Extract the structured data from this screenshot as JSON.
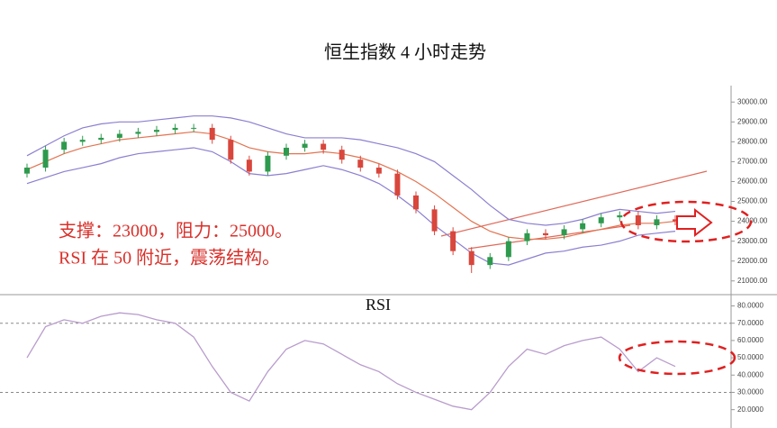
{
  "chart_data": [
    {
      "type": "candlestick",
      "title": "恒生指数 4 小时走势",
      "annotations": [
        "支撑：23000，阻力：25000。",
        "RSI 在 50 附近，震荡结构。"
      ],
      "open": [
        26400,
        26700,
        27600,
        28000,
        28100,
        28200,
        28400,
        28500,
        28600,
        28700,
        28700,
        28100,
        27100,
        26500,
        27300,
        27700,
        27900,
        27600,
        27100,
        26700,
        26400,
        25300,
        24600,
        23500,
        22500,
        21800,
        22200,
        23000,
        23400,
        23300,
        23600,
        23900,
        24200,
        24300,
        23800,
        24100
      ],
      "high": [
        26900,
        27800,
        28200,
        28300,
        28400,
        28600,
        28700,
        28800,
        28900,
        28900,
        28900,
        28300,
        27300,
        27500,
        27900,
        28100,
        28100,
        27800,
        27300,
        26900,
        26600,
        25500,
        24800,
        23700,
        22700,
        22400,
        23200,
        23600,
        23600,
        23800,
        24100,
        24400,
        24500,
        24500,
        24300,
        24300
      ],
      "low": [
        26200,
        26500,
        27400,
        27800,
        27900,
        28000,
        28200,
        28300,
        28400,
        28500,
        27900,
        26900,
        26300,
        26300,
        27100,
        27500,
        27400,
        26900,
        26500,
        26200,
        25100,
        24400,
        23300,
        22300,
        21400,
        21600,
        22000,
        22800,
        23100,
        23100,
        23400,
        23700,
        24000,
        23600,
        23600,
        23800
      ],
      "close": [
        26700,
        27600,
        28000,
        28100,
        28200,
        28400,
        28500,
        28600,
        28700,
        28700,
        28100,
        27100,
        26500,
        27300,
        27700,
        27900,
        27600,
        27100,
        26700,
        26400,
        25300,
        24600,
        23500,
        22500,
        21800,
        22200,
        23000,
        23400,
        23300,
        23600,
        23900,
        24200,
        24300,
        23800,
        24100,
        24000
      ],
      "up_color": "#2e9a4e",
      "down_color": "#d8463c",
      "bands": {
        "upper": [
          27300,
          27800,
          28300,
          28700,
          28900,
          29000,
          29000,
          29100,
          29200,
          29300,
          29300,
          29200,
          29000,
          28700,
          28400,
          28200,
          28200,
          28200,
          28100,
          27900,
          27700,
          27400,
          27000,
          26300,
          25600,
          24800,
          24100,
          23900,
          23800,
          23900,
          24100,
          24400,
          24600,
          24500,
          24400,
          24500
        ],
        "middle": [
          26600,
          27000,
          27400,
          27700,
          27900,
          28100,
          28200,
          28300,
          28400,
          28500,
          28400,
          28100,
          27700,
          27500,
          27400,
          27400,
          27500,
          27400,
          27200,
          26900,
          26500,
          26000,
          25400,
          24700,
          24000,
          23500,
          23200,
          23100,
          23100,
          23200,
          23400,
          23600,
          23800,
          23900,
          23900,
          24000
        ],
        "lower": [
          25900,
          26200,
          26500,
          26700,
          26900,
          27200,
          27400,
          27500,
          27600,
          27700,
          27500,
          27000,
          26400,
          26300,
          26400,
          26600,
          26800,
          26600,
          26300,
          25900,
          25300,
          24600,
          23800,
          23100,
          22400,
          21900,
          21800,
          22100,
          22400,
          22500,
          22700,
          22800,
          23000,
          23300,
          23400,
          23500
        ],
        "band_color": "#8c7fd0",
        "middle_color": "#e27452"
      },
      "ylim": [
        20400,
        30600
      ],
      "yticks": [
        {
          "value": 21000,
          "label": "21000.00"
        },
        {
          "value": 22000,
          "label": "22000.00"
        },
        {
          "value": 23000,
          "label": "23000.00"
        },
        {
          "value": 24000,
          "label": "24000.00"
        },
        {
          "value": 25000,
          "label": "25000.00"
        },
        {
          "value": 26000,
          "label": "26000.00"
        },
        {
          "value": 27000,
          "label": "27000.00"
        },
        {
          "value": 28000,
          "label": "28000.00"
        },
        {
          "value": 29000,
          "label": "29000.00"
        },
        {
          "value": 30000,
          "label": "30000.00"
        }
      ]
    },
    {
      "type": "line",
      "title": "RSI",
      "values": [
        50,
        68,
        72,
        70,
        74,
        76,
        75,
        72,
        70,
        62,
        45,
        30,
        25,
        42,
        55,
        60,
        58,
        52,
        46,
        42,
        35,
        30,
        26,
        22,
        20,
        30,
        45,
        55,
        52,
        57,
        60,
        62,
        55,
        42,
        50,
        45
      ],
      "color": "#b89ccc",
      "hlines": [
        70,
        30
      ],
      "ylim": [
        12,
        86
      ],
      "yticks": [
        {
          "value": 20,
          "label": "20.0000"
        },
        {
          "value": 30,
          "label": "30.0000"
        },
        {
          "value": 40,
          "label": "40.0000"
        },
        {
          "value": 50,
          "label": "50.0000"
        },
        {
          "value": 60,
          "label": "60.0000"
        },
        {
          "value": 70,
          "label": "70.0000"
        },
        {
          "value": 80,
          "label": "80.0000"
        }
      ]
    }
  ]
}
